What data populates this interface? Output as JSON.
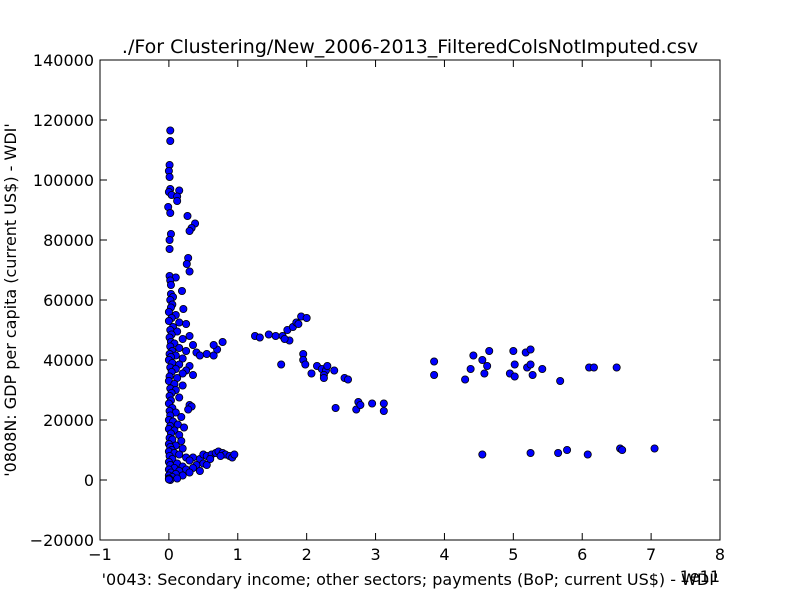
{
  "chart_data": {
    "type": "scatter",
    "title": "./For Clustering/New_2006-2013_FilteredColsNotImputed.csv",
    "xlabel": "'0043: Secondary income; other sectors; payments  (BoP; current US$) - WDI'",
    "ylabel": "'0808N: GDP per capita  (current US$) - WDI'",
    "x_offset_label": "1e11",
    "xlim": [
      -1,
      8
    ],
    "ylim": [
      -20000,
      140000
    ],
    "x_ticks": [
      -1,
      0,
      1,
      2,
      3,
      4,
      5,
      6,
      7,
      8
    ],
    "x_tick_labels": [
      "−1",
      "0",
      "1",
      "2",
      "3",
      "4",
      "5",
      "6",
      "7",
      "8"
    ],
    "y_ticks": [
      -20000,
      0,
      20000,
      40000,
      60000,
      80000,
      100000,
      120000,
      140000
    ],
    "y_tick_labels": [
      "−20000",
      "0",
      "20000",
      "40000",
      "60000",
      "80000",
      "100000",
      "120000",
      "140000"
    ],
    "grid": false,
    "marker_color": "#0000ff",
    "marker_edge_color": "#000000",
    "points": [
      [
        0.02,
        116500
      ],
      [
        0.02,
        113000
      ],
      [
        0.01,
        105000
      ],
      [
        0.0,
        103000
      ],
      [
        0.01,
        101000
      ],
      [
        0.02,
        97000
      ],
      [
        0.0,
        96000
      ],
      [
        0.04,
        95000
      ],
      [
        0.15,
        96500
      ],
      [
        0.12,
        94500
      ],
      [
        0.12,
        93000
      ],
      [
        -0.01,
        91000
      ],
      [
        0.02,
        89000
      ],
      [
        0.27,
        88000
      ],
      [
        0.38,
        85500
      ],
      [
        0.33,
        84000
      ],
      [
        0.3,
        83000
      ],
      [
        0.03,
        82000
      ],
      [
        0.01,
        80000
      ],
      [
        0.01,
        77000
      ],
      [
        0.28,
        74000
      ],
      [
        0.26,
        72000
      ],
      [
        0.3,
        69500
      ],
      [
        0.01,
        68000
      ],
      [
        0.1,
        67500
      ],
      [
        0.02,
        66500
      ],
      [
        0.03,
        65000
      ],
      [
        0.19,
        63000
      ],
      [
        0.03,
        62000
      ],
      [
        0.06,
        61000
      ],
      [
        0.02,
        60000
      ],
      [
        0.05,
        58500
      ],
      [
        0.03,
        57500
      ],
      [
        0.21,
        57000
      ],
      [
        0.0,
        56000
      ],
      [
        0.1,
        55000
      ],
      [
        0.04,
        54000
      ],
      [
        0.0,
        53000
      ],
      [
        0.15,
        52500
      ],
      [
        0.25,
        52000
      ],
      [
        0.06,
        51000
      ],
      [
        0.02,
        50000
      ],
      [
        0.12,
        49500
      ],
      [
        0.04,
        48500
      ],
      [
        0.3,
        48000
      ],
      [
        0.01,
        47500
      ],
      [
        0.2,
        47000
      ],
      [
        0.03,
        46000
      ],
      [
        0.08,
        45500
      ],
      [
        0.35,
        45000
      ],
      [
        0.02,
        44500
      ],
      [
        0.15,
        44000
      ],
      [
        0.05,
        43000
      ],
      [
        0.25,
        43000
      ],
      [
        0.4,
        42500
      ],
      [
        0.01,
        42000
      ],
      [
        0.1,
        41500
      ],
      [
        0.45,
        41500
      ],
      [
        0.03,
        41000
      ],
      [
        0.2,
        40500
      ],
      [
        0.55,
        42000
      ],
      [
        0.65,
        41500
      ],
      [
        0.7,
        43500
      ],
      [
        0.78,
        46000
      ],
      [
        0.65,
        45000
      ],
      [
        0.0,
        40000
      ],
      [
        0.05,
        39000
      ],
      [
        0.15,
        38500
      ],
      [
        0.3,
        38000
      ],
      [
        0.02,
        37500
      ],
      [
        0.1,
        37000
      ],
      [
        0.25,
        36500
      ],
      [
        0.04,
        36000
      ],
      [
        0.2,
        35500
      ],
      [
        0.35,
        35000
      ],
      [
        0.01,
        34500
      ],
      [
        0.12,
        34000
      ],
      [
        0.0,
        33000
      ],
      [
        0.08,
        32000
      ],
      [
        0.2,
        31500
      ],
      [
        0.02,
        30500
      ],
      [
        0.1,
        30000
      ],
      [
        0.04,
        29000
      ],
      [
        0.01,
        28000
      ],
      [
        0.15,
        27500
      ],
      [
        0.03,
        26500
      ],
      [
        0.0,
        25500
      ],
      [
        0.3,
        25000
      ],
      [
        0.33,
        24500
      ],
      [
        0.28,
        23500
      ],
      [
        0.05,
        24000
      ],
      [
        0.01,
        23000
      ],
      [
        0.1,
        22500
      ],
      [
        0.02,
        21500
      ],
      [
        0.18,
        21000
      ],
      [
        0.0,
        20000
      ],
      [
        0.06,
        19500
      ],
      [
        0.13,
        18500
      ],
      [
        0.02,
        18000
      ],
      [
        0.22,
        17500
      ],
      [
        0.0,
        17000
      ],
      [
        0.08,
        16500
      ],
      [
        0.03,
        15500
      ],
      [
        0.15,
        15000
      ],
      [
        0.01,
        14000
      ],
      [
        0.05,
        13500
      ],
      [
        0.18,
        13000
      ],
      [
        0.0,
        12000
      ],
      [
        0.1,
        11500
      ],
      [
        0.02,
        11000
      ],
      [
        0.2,
        10500
      ],
      [
        0.04,
        10000
      ],
      [
        0.0,
        9500
      ],
      [
        0.08,
        9000
      ],
      [
        0.15,
        8500
      ],
      [
        0.01,
        8000
      ],
      [
        0.25,
        7500
      ],
      [
        0.05,
        7000
      ],
      [
        0.35,
        7500
      ],
      [
        0.45,
        7000
      ],
      [
        0.3,
        6500
      ],
      [
        0.0,
        6000
      ],
      [
        0.12,
        5500
      ],
      [
        0.4,
        5000
      ],
      [
        0.5,
        5500
      ],
      [
        0.02,
        5000
      ],
      [
        0.2,
        4500
      ],
      [
        0.55,
        5000
      ],
      [
        0.35,
        4000
      ],
      [
        0.08,
        4000
      ],
      [
        0.0,
        3500
      ],
      [
        0.25,
        3500
      ],
      [
        0.45,
        3000
      ],
      [
        0.15,
        3000
      ],
      [
        0.03,
        2500
      ],
      [
        0.3,
        2500
      ],
      [
        0.1,
        2000
      ],
      [
        0.0,
        1500
      ],
      [
        0.2,
        1500
      ],
      [
        0.05,
        1000
      ],
      [
        0.0,
        500
      ],
      [
        0.12,
        500
      ],
      [
        0.02,
        0
      ],
      [
        0.0,
        200
      ],
      [
        0.5,
        8500
      ],
      [
        0.55,
        8000
      ],
      [
        0.62,
        8500
      ],
      [
        0.68,
        9000
      ],
      [
        0.72,
        9500
      ],
      [
        0.78,
        9000
      ],
      [
        0.82,
        8500
      ],
      [
        0.88,
        8000
      ],
      [
        0.92,
        7500
      ],
      [
        0.95,
        8500
      ],
      [
        0.6,
        7000
      ],
      [
        0.75,
        8000
      ],
      [
        1.25,
        48000
      ],
      [
        1.32,
        47500
      ],
      [
        1.45,
        48500
      ],
      [
        1.55,
        48000
      ],
      [
        1.65,
        48000
      ],
      [
        1.72,
        50000
      ],
      [
        1.8,
        51000
      ],
      [
        1.85,
        52500
      ],
      [
        1.92,
        54500
      ],
      [
        1.88,
        52000
      ],
      [
        1.75,
        46500
      ],
      [
        1.68,
        47000
      ],
      [
        1.95,
        42000
      ],
      [
        1.95,
        40000
      ],
      [
        1.98,
        38500
      ],
      [
        2.07,
        35500
      ],
      [
        2.15,
        38000
      ],
      [
        2.22,
        37000
      ],
      [
        2.28,
        36500
      ],
      [
        2.3,
        38000
      ],
      [
        2.25,
        35000
      ],
      [
        2.25,
        34000
      ],
      [
        2.4,
        36500
      ],
      [
        2.55,
        34000
      ],
      [
        2.6,
        33500
      ],
      [
        2.42,
        24000
      ],
      [
        2.72,
        23500
      ],
      [
        2.75,
        26000
      ],
      [
        2.78,
        25000
      ],
      [
        2.95,
        25500
      ],
      [
        3.12,
        23000
      ],
      [
        3.12,
        25500
      ],
      [
        1.63,
        38500
      ],
      [
        2.0,
        54000
      ],
      [
        3.85,
        39500
      ],
      [
        3.85,
        35000
      ],
      [
        4.3,
        33500
      ],
      [
        4.38,
        37000
      ],
      [
        4.42,
        41500
      ],
      [
        4.55,
        40000
      ],
      [
        4.58,
        35500
      ],
      [
        4.65,
        43000
      ],
      [
        4.62,
        38000
      ],
      [
        4.95,
        35500
      ],
      [
        5.0,
        43000
      ],
      [
        5.02,
        38500
      ],
      [
        5.02,
        34500
      ],
      [
        5.18,
        42500
      ],
      [
        5.2,
        37500
      ],
      [
        5.25,
        43500
      ],
      [
        5.25,
        38500
      ],
      [
        5.28,
        35000
      ],
      [
        5.42,
        37000
      ],
      [
        5.68,
        33000
      ],
      [
        6.1,
        37500
      ],
      [
        6.17,
        37500
      ],
      [
        6.5,
        37500
      ],
      [
        4.55,
        8500
      ],
      [
        5.25,
        9000
      ],
      [
        5.65,
        9000
      ],
      [
        5.78,
        10000
      ],
      [
        6.08,
        8500
      ],
      [
        6.55,
        10500
      ],
      [
        6.58,
        10000
      ],
      [
        7.05,
        10500
      ]
    ]
  }
}
